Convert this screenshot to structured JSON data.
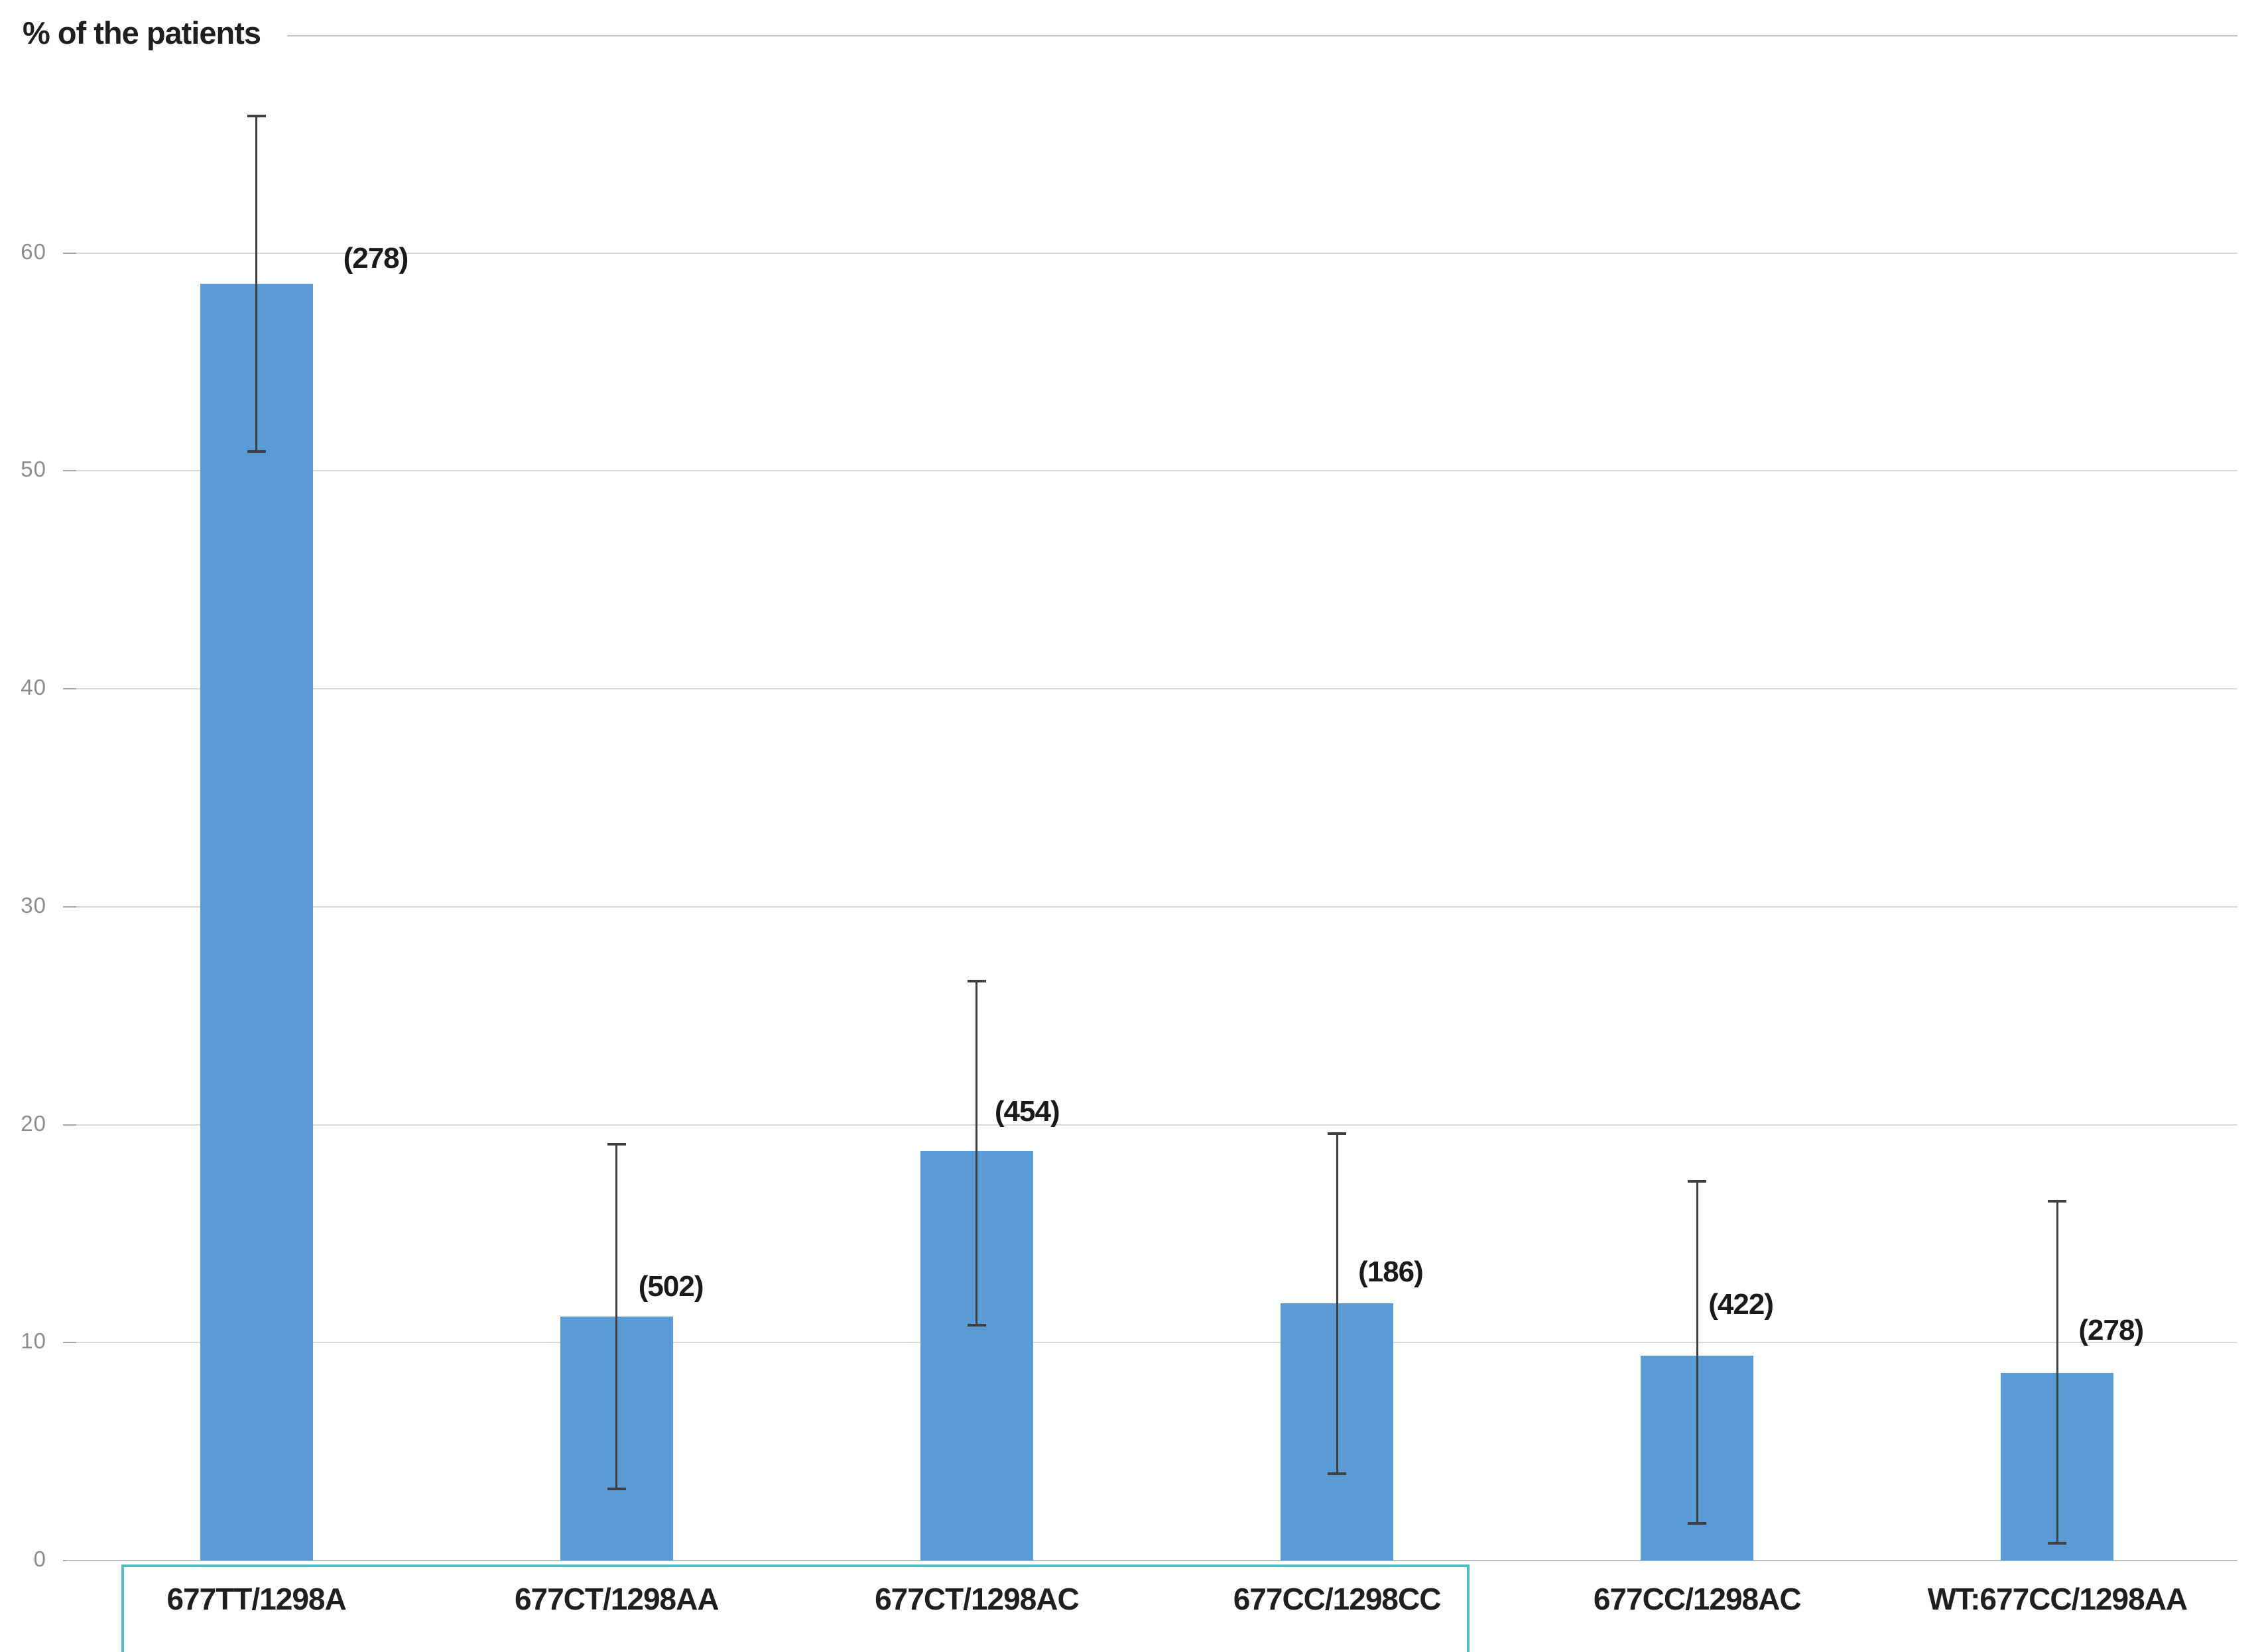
{
  "title": "% of the patients",
  "chart_data": {
    "type": "bar",
    "title": "% of the patients",
    "ylabel": "% of the patients",
    "xlabel": "",
    "categories": [
      "677TT/1298A",
      "677CT/1298AA",
      "677CT/1298AC",
      "677CC/1298CC",
      "677CC/1298AC",
      "WT:677CC/1298AA"
    ],
    "values": [
      58.6,
      11.2,
      18.8,
      11.8,
      9.4,
      8.6
    ],
    "error_high": [
      66.3,
      19.1,
      26.6,
      19.6,
      17.4,
      16.5
    ],
    "error_low": [
      50.9,
      3.3,
      10.8,
      4.0,
      1.7,
      0.8
    ],
    "bar_labels": [
      "(278)",
      "(502)",
      "(454)",
      "(186)",
      "(422)",
      "(278)"
    ],
    "y_ticks": [
      0,
      10,
      20,
      30,
      40,
      50,
      60
    ],
    "ylim": [
      0,
      70
    ],
    "grid": "horizontal",
    "legend": "none",
    "bar_color": "#5b9bd5",
    "error_color": "#3f3f3f",
    "gridline_color": "#d9d9d9",
    "tick_label_color": "#8c8c8c",
    "highlight_box": {
      "covers_categories": [
        "677TT/1298A",
        "677CT/1298AA",
        "677CT/1298AC",
        "677CC/1298CC"
      ],
      "border_color": "#56b9c4",
      "fill": "#ffffff"
    }
  }
}
